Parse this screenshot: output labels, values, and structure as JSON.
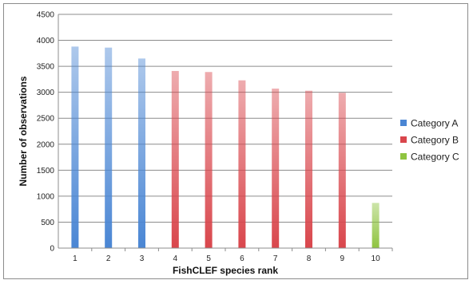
{
  "chart_data": {
    "type": "bar",
    "title": "",
    "xlabel": "FishCLEF species rank",
    "ylabel": "Number of observations",
    "ylim": [
      0,
      4500
    ],
    "yticks": [
      0,
      500,
      1000,
      1500,
      2000,
      2500,
      3000,
      3500,
      4000,
      4500
    ],
    "grid": true,
    "legend_position": "right",
    "categories": [
      "1",
      "2",
      "3",
      "4",
      "5",
      "6",
      "7",
      "8",
      "9",
      "10"
    ],
    "series": [
      {
        "name": "Category A",
        "color": "#4a86d4",
        "values": [
          3880,
          3860,
          3650,
          null,
          null,
          null,
          null,
          null,
          null,
          null
        ]
      },
      {
        "name": "Category B",
        "color": "#d9464c",
        "values": [
          null,
          null,
          null,
          3410,
          3390,
          3230,
          3070,
          3030,
          2990,
          null
        ]
      },
      {
        "name": "Category C",
        "color": "#8fc440",
        "values": [
          null,
          null,
          null,
          null,
          null,
          null,
          null,
          null,
          null,
          870
        ]
      }
    ]
  }
}
